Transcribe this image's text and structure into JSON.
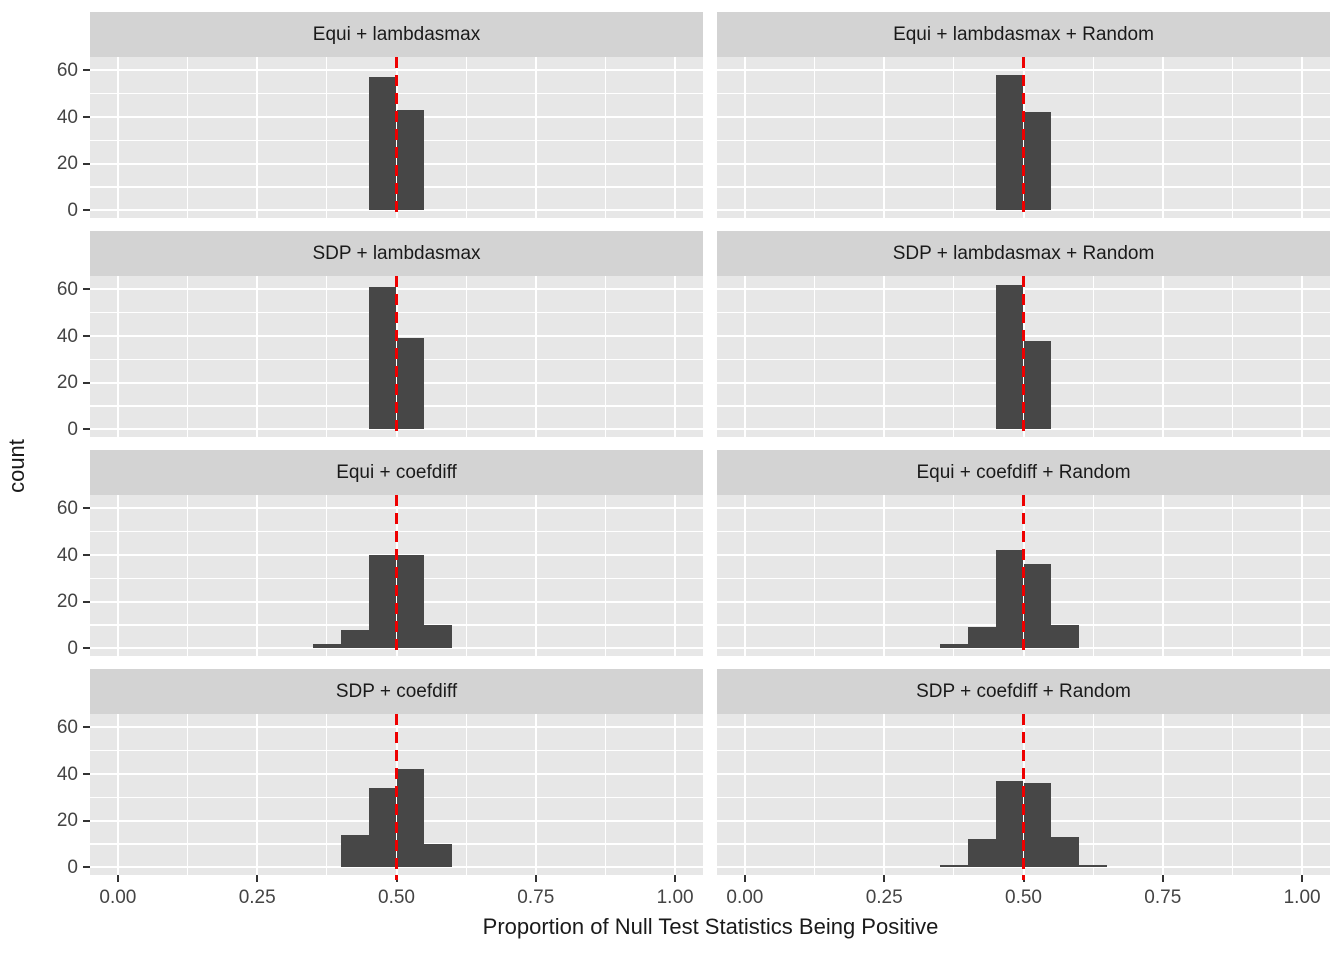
{
  "figure": {
    "ylabel": "count",
    "xlabel": "Proportion of Null Test Statistics Being Positive",
    "y_ticks": [
      {
        "label": "60",
        "value": 60
      },
      {
        "label": "40",
        "value": 40
      },
      {
        "label": "20",
        "value": 20
      },
      {
        "label": "0",
        "value": 0
      }
    ],
    "x_ticks": [
      {
        "label": "0.00",
        "value": 0
      },
      {
        "label": "0.25",
        "value": 0.25
      },
      {
        "label": "0.50",
        "value": 0.5
      },
      {
        "label": "0.75",
        "value": 0.75
      },
      {
        "label": "1.00",
        "value": 1
      }
    ],
    "colors": {
      "bar": "#474747",
      "panel_bg": "#e7e7e7",
      "strip_bg": "#d3d3d3",
      "gridline": "#ffffff",
      "ref_line": "#ee0000",
      "axis_text": "#444444",
      "strip_text": "#1a1a1a",
      "title_text": "#1a1a1a"
    }
  },
  "chart_data": {
    "type": "bar",
    "subtype": "faceted-histogram",
    "title": "",
    "xlabel": "Proportion of Null Test Statistics Being Positive",
    "ylabel": "count",
    "bin_width": 0.05,
    "ref_line_x": 0.5,
    "ref_line_style": "dashed-red",
    "x_range": [
      -0.05,
      1.05
    ],
    "y_range": [
      -3.3,
      65.7
    ],
    "x_major_gridlines": [
      0,
      0.25,
      0.5,
      0.75,
      1.0
    ],
    "x_minor_gridlines": [
      0.125,
      0.375,
      0.625,
      0.875
    ],
    "y_major_gridlines": [
      0,
      20,
      40,
      60
    ],
    "y_minor_gridlines": [
      10,
      30,
      50
    ],
    "grid": true,
    "legend": "none",
    "facet_grid": {
      "rows": 4,
      "cols": 2
    },
    "facets": [
      {
        "title": "Equi + lambdasmax",
        "bins": [
          {
            "x0": 0.45,
            "x1": 0.5,
            "count": 57
          },
          {
            "x0": 0.5,
            "x1": 0.55,
            "count": 43
          }
        ]
      },
      {
        "title": "Equi + lambdasmax + Random",
        "bins": [
          {
            "x0": 0.45,
            "x1": 0.5,
            "count": 58
          },
          {
            "x0": 0.5,
            "x1": 0.55,
            "count": 42
          }
        ]
      },
      {
        "title": "SDP + lambdasmax",
        "bins": [
          {
            "x0": 0.45,
            "x1": 0.5,
            "count": 61
          },
          {
            "x0": 0.5,
            "x1": 0.55,
            "count": 39
          }
        ]
      },
      {
        "title": "SDP + lambdasmax + Random",
        "bins": [
          {
            "x0": 0.45,
            "x1": 0.5,
            "count": 62
          },
          {
            "x0": 0.5,
            "x1": 0.55,
            "count": 38
          }
        ]
      },
      {
        "title": "Equi + coefdiff",
        "bins": [
          {
            "x0": 0.35,
            "x1": 0.4,
            "count": 2
          },
          {
            "x0": 0.4,
            "x1": 0.45,
            "count": 8
          },
          {
            "x0": 0.45,
            "x1": 0.5,
            "count": 40
          },
          {
            "x0": 0.5,
            "x1": 0.55,
            "count": 40
          },
          {
            "x0": 0.55,
            "x1": 0.6,
            "count": 10
          }
        ]
      },
      {
        "title": "Equi + coefdiff + Random",
        "bins": [
          {
            "x0": 0.35,
            "x1": 0.4,
            "count": 2
          },
          {
            "x0": 0.4,
            "x1": 0.45,
            "count": 9
          },
          {
            "x0": 0.45,
            "x1": 0.5,
            "count": 42
          },
          {
            "x0": 0.5,
            "x1": 0.55,
            "count": 36
          },
          {
            "x0": 0.55,
            "x1": 0.6,
            "count": 10
          }
        ]
      },
      {
        "title": "SDP + coefdiff",
        "bins": [
          {
            "x0": 0.4,
            "x1": 0.45,
            "count": 14
          },
          {
            "x0": 0.45,
            "x1": 0.5,
            "count": 34
          },
          {
            "x0": 0.5,
            "x1": 0.55,
            "count": 42
          },
          {
            "x0": 0.55,
            "x1": 0.6,
            "count": 10
          }
        ]
      },
      {
        "title": "SDP + coefdiff + Random",
        "bins": [
          {
            "x0": 0.35,
            "x1": 0.4,
            "count": 1
          },
          {
            "x0": 0.4,
            "x1": 0.45,
            "count": 12
          },
          {
            "x0": 0.45,
            "x1": 0.5,
            "count": 37
          },
          {
            "x0": 0.5,
            "x1": 0.55,
            "count": 36
          },
          {
            "x0": 0.55,
            "x1": 0.6,
            "count": 13
          },
          {
            "x0": 0.6,
            "x1": 0.65,
            "count": 1
          }
        ]
      }
    ]
  }
}
